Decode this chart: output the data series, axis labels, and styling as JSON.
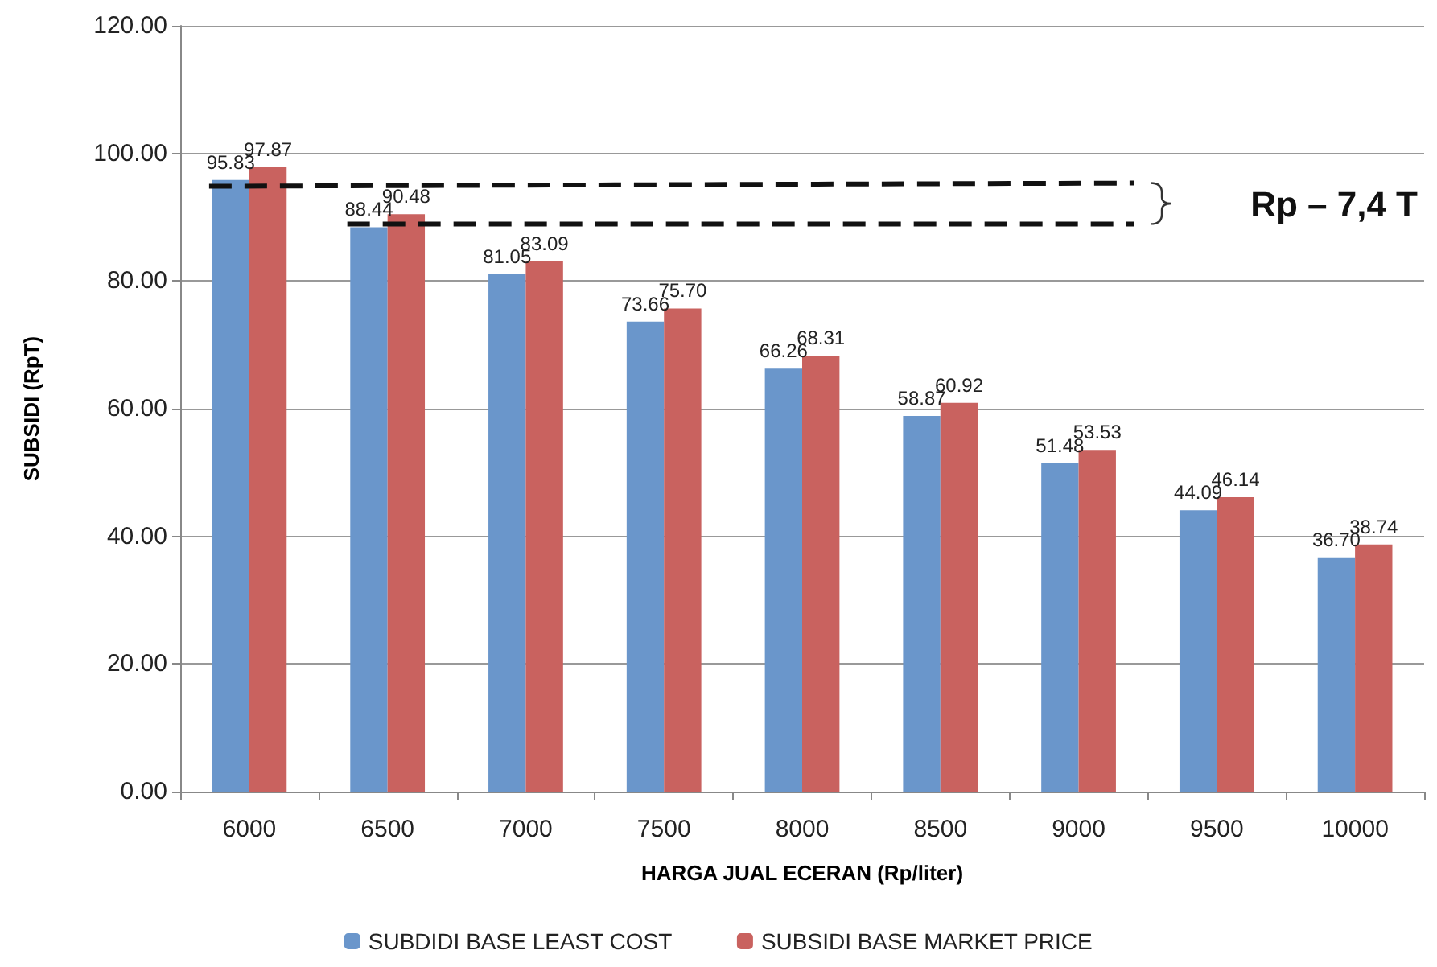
{
  "chart_data": {
    "type": "bar",
    "xlabel": "HARGA JUAL ECERAN (Rp/liter)",
    "ylabel": "SUBSIDI (RpT)",
    "categories": [
      "6000",
      "6500",
      "7000",
      "7500",
      "8000",
      "8500",
      "9000",
      "9500",
      "10000"
    ],
    "series": [
      {
        "name": "SUBDIDI BASE LEAST COST",
        "color": "#6a96cb",
        "values": [
          95.83,
          88.44,
          81.05,
          73.66,
          66.26,
          58.87,
          51.48,
          44.09,
          36.7
        ],
        "value_labels": [
          "95.83",
          "88.44",
          "81.05",
          "73.66",
          "66.26",
          "58.87",
          "51.48",
          "44.09",
          "36.70"
        ]
      },
      {
        "name": "SUBSIDI BASE MARKET PRICE",
        "color": "#c9625f",
        "values": [
          97.87,
          90.48,
          83.09,
          75.7,
          68.31,
          60.92,
          53.53,
          46.14,
          38.74
        ],
        "value_labels": [
          "97.87",
          "90.48",
          "83.09",
          "75.70",
          "68.31",
          "60.92",
          "53.53",
          "46.14",
          "38.74"
        ]
      }
    ],
    "ylim": [
      0,
      120
    ],
    "yticks": [
      {
        "value": 0,
        "label": "0.00"
      },
      {
        "value": 20,
        "label": "20.00"
      },
      {
        "value": 40,
        "label": "40.00"
      },
      {
        "value": 60,
        "label": "60.00"
      },
      {
        "value": 80,
        "label": "80.00"
      },
      {
        "value": 100,
        "label": "100.00"
      },
      {
        "value": 120,
        "label": "120.00"
      }
    ],
    "grid": "y",
    "legend": "bottom",
    "annotations": [
      "Rp – 7,4 T"
    ]
  }
}
